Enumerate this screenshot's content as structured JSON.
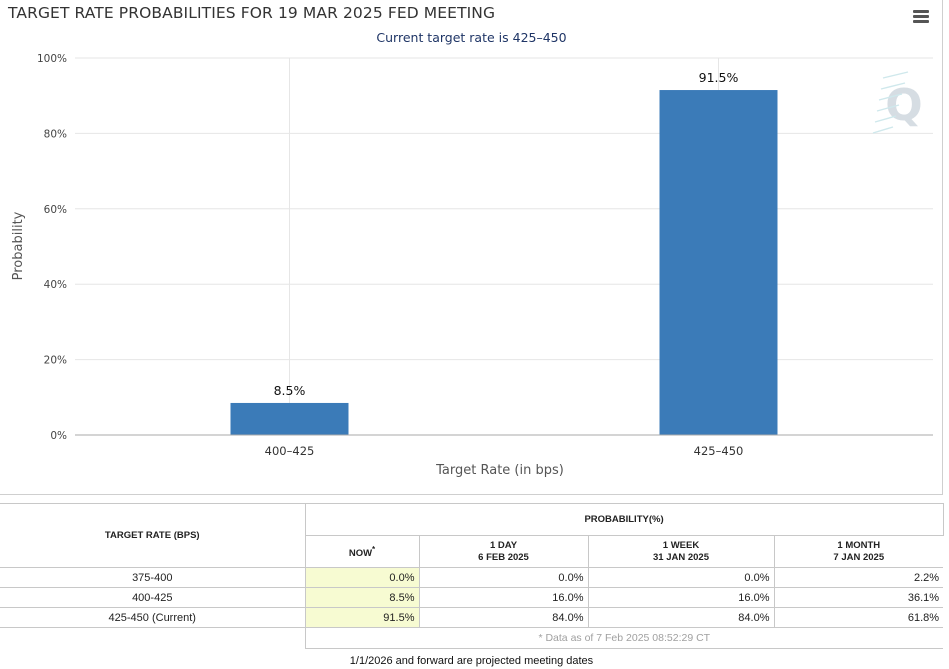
{
  "header": {
    "title": "TARGET RATE PROBABILITIES FOR 19 MAR 2025 FED MEETING",
    "subtitle": "Current target rate is 425–450",
    "menu_icon": "hamburger-menu-icon"
  },
  "chart_data": {
    "type": "bar",
    "title": "TARGET RATE PROBABILITIES FOR 19 MAR 2025 FED MEETING",
    "subtitle": "Current target rate is 425–450",
    "categories": [
      "400–425",
      "425–450"
    ],
    "values": [
      8.5,
      91.5
    ],
    "data_labels": [
      "8.5%",
      "91.5%"
    ],
    "xlabel": "Target Rate (in bps)",
    "ylabel": "Probability",
    "ylim": [
      0,
      100
    ],
    "yticks": [
      "0%",
      "20%",
      "40%",
      "60%",
      "80%",
      "100%"
    ],
    "grid": true,
    "bar_color": "#3b7bb8",
    "watermark": "Q"
  },
  "table": {
    "col_rate_header": "TARGET RATE (BPS)",
    "prob_header": "PROBABILITY(%)",
    "sub_headers": [
      {
        "line1": "NOW",
        "line2": ""
      },
      {
        "line1": "1 DAY",
        "line2": "6 FEB 2025"
      },
      {
        "line1": "1 WEEK",
        "line2": "31 JAN 2025"
      },
      {
        "line1": "1 MONTH",
        "line2": "7 JAN 2025"
      }
    ],
    "now_star": "*",
    "rows": [
      {
        "rate": "375-400",
        "values": [
          "0.0%",
          "0.0%",
          "0.0%",
          "2.2%"
        ]
      },
      {
        "rate": "400-425",
        "values": [
          "8.5%",
          "16.0%",
          "16.0%",
          "36.1%"
        ]
      },
      {
        "rate": "425-450 (Current)",
        "values": [
          "91.5%",
          "84.0%",
          "84.0%",
          "61.8%"
        ]
      }
    ],
    "note": "* Data as of 7 Feb 2025 08:52:29 CT",
    "now_highlight_color": "#f7fbd2"
  },
  "footer": {
    "note": "1/1/2026 and forward are projected meeting dates"
  }
}
